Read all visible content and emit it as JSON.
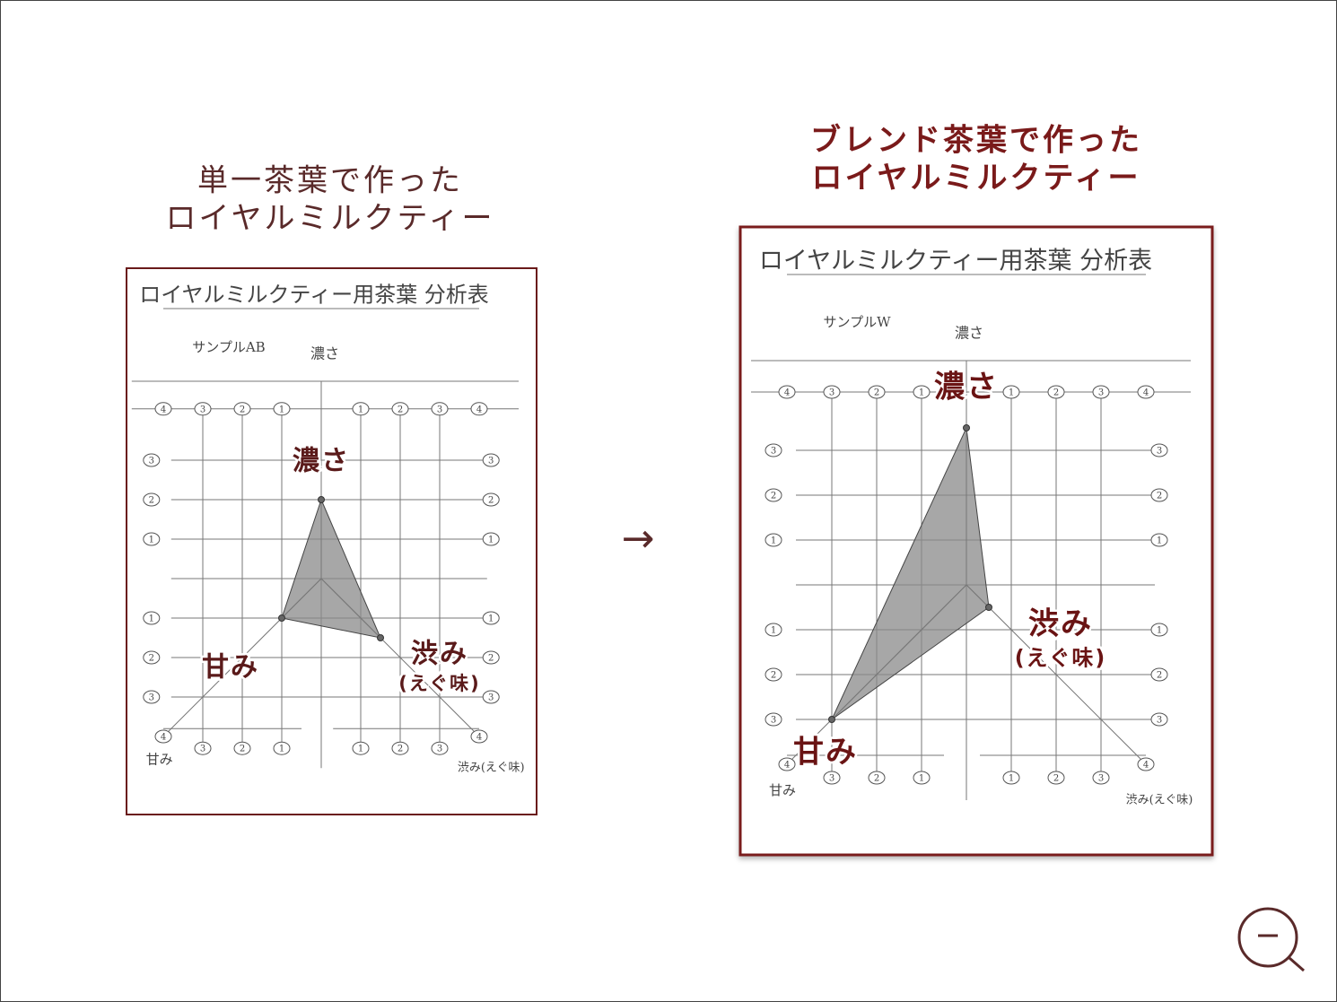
{
  "before": {
    "heading": [
      "単一茶葉で作った",
      "ロイヤルミルクティー"
    ],
    "sheet": {
      "title": "ロイヤルミルクティー用茶葉 分析表",
      "sample": "サンプルAB",
      "axis_labels": {
        "top": "濃さ",
        "left": "甘み",
        "right": "渋み(えぐ味)"
      },
      "scale": [
        1,
        2,
        3,
        4
      ],
      "labels": {
        "richness": "濃さ",
        "sweetness": "甘み",
        "astringency": "渋み",
        "astringency_note": "(えぐ味)"
      },
      "values": {
        "richness": 2,
        "sweetness": 1,
        "astringency": 1.5
      }
    }
  },
  "arrow": "→",
  "after": {
    "heading": [
      "ブレンド茶葉で作った",
      "ロイヤルミルクティー"
    ],
    "sheet": {
      "title": "ロイヤルミルクティー用茶葉 分析表",
      "sample": "サンプルW",
      "axis_labels": {
        "top": "濃さ",
        "left": "甘み",
        "right": "渋み(えぐ味)"
      },
      "scale": [
        1,
        2,
        3,
        4
      ],
      "labels": {
        "richness": "濃さ",
        "sweetness": "甘み",
        "astringency": "渋み",
        "astringency_note": "(えぐ味)"
      },
      "values": {
        "richness": 3.5,
        "sweetness": 3,
        "astringency": 0.5
      }
    }
  }
}
